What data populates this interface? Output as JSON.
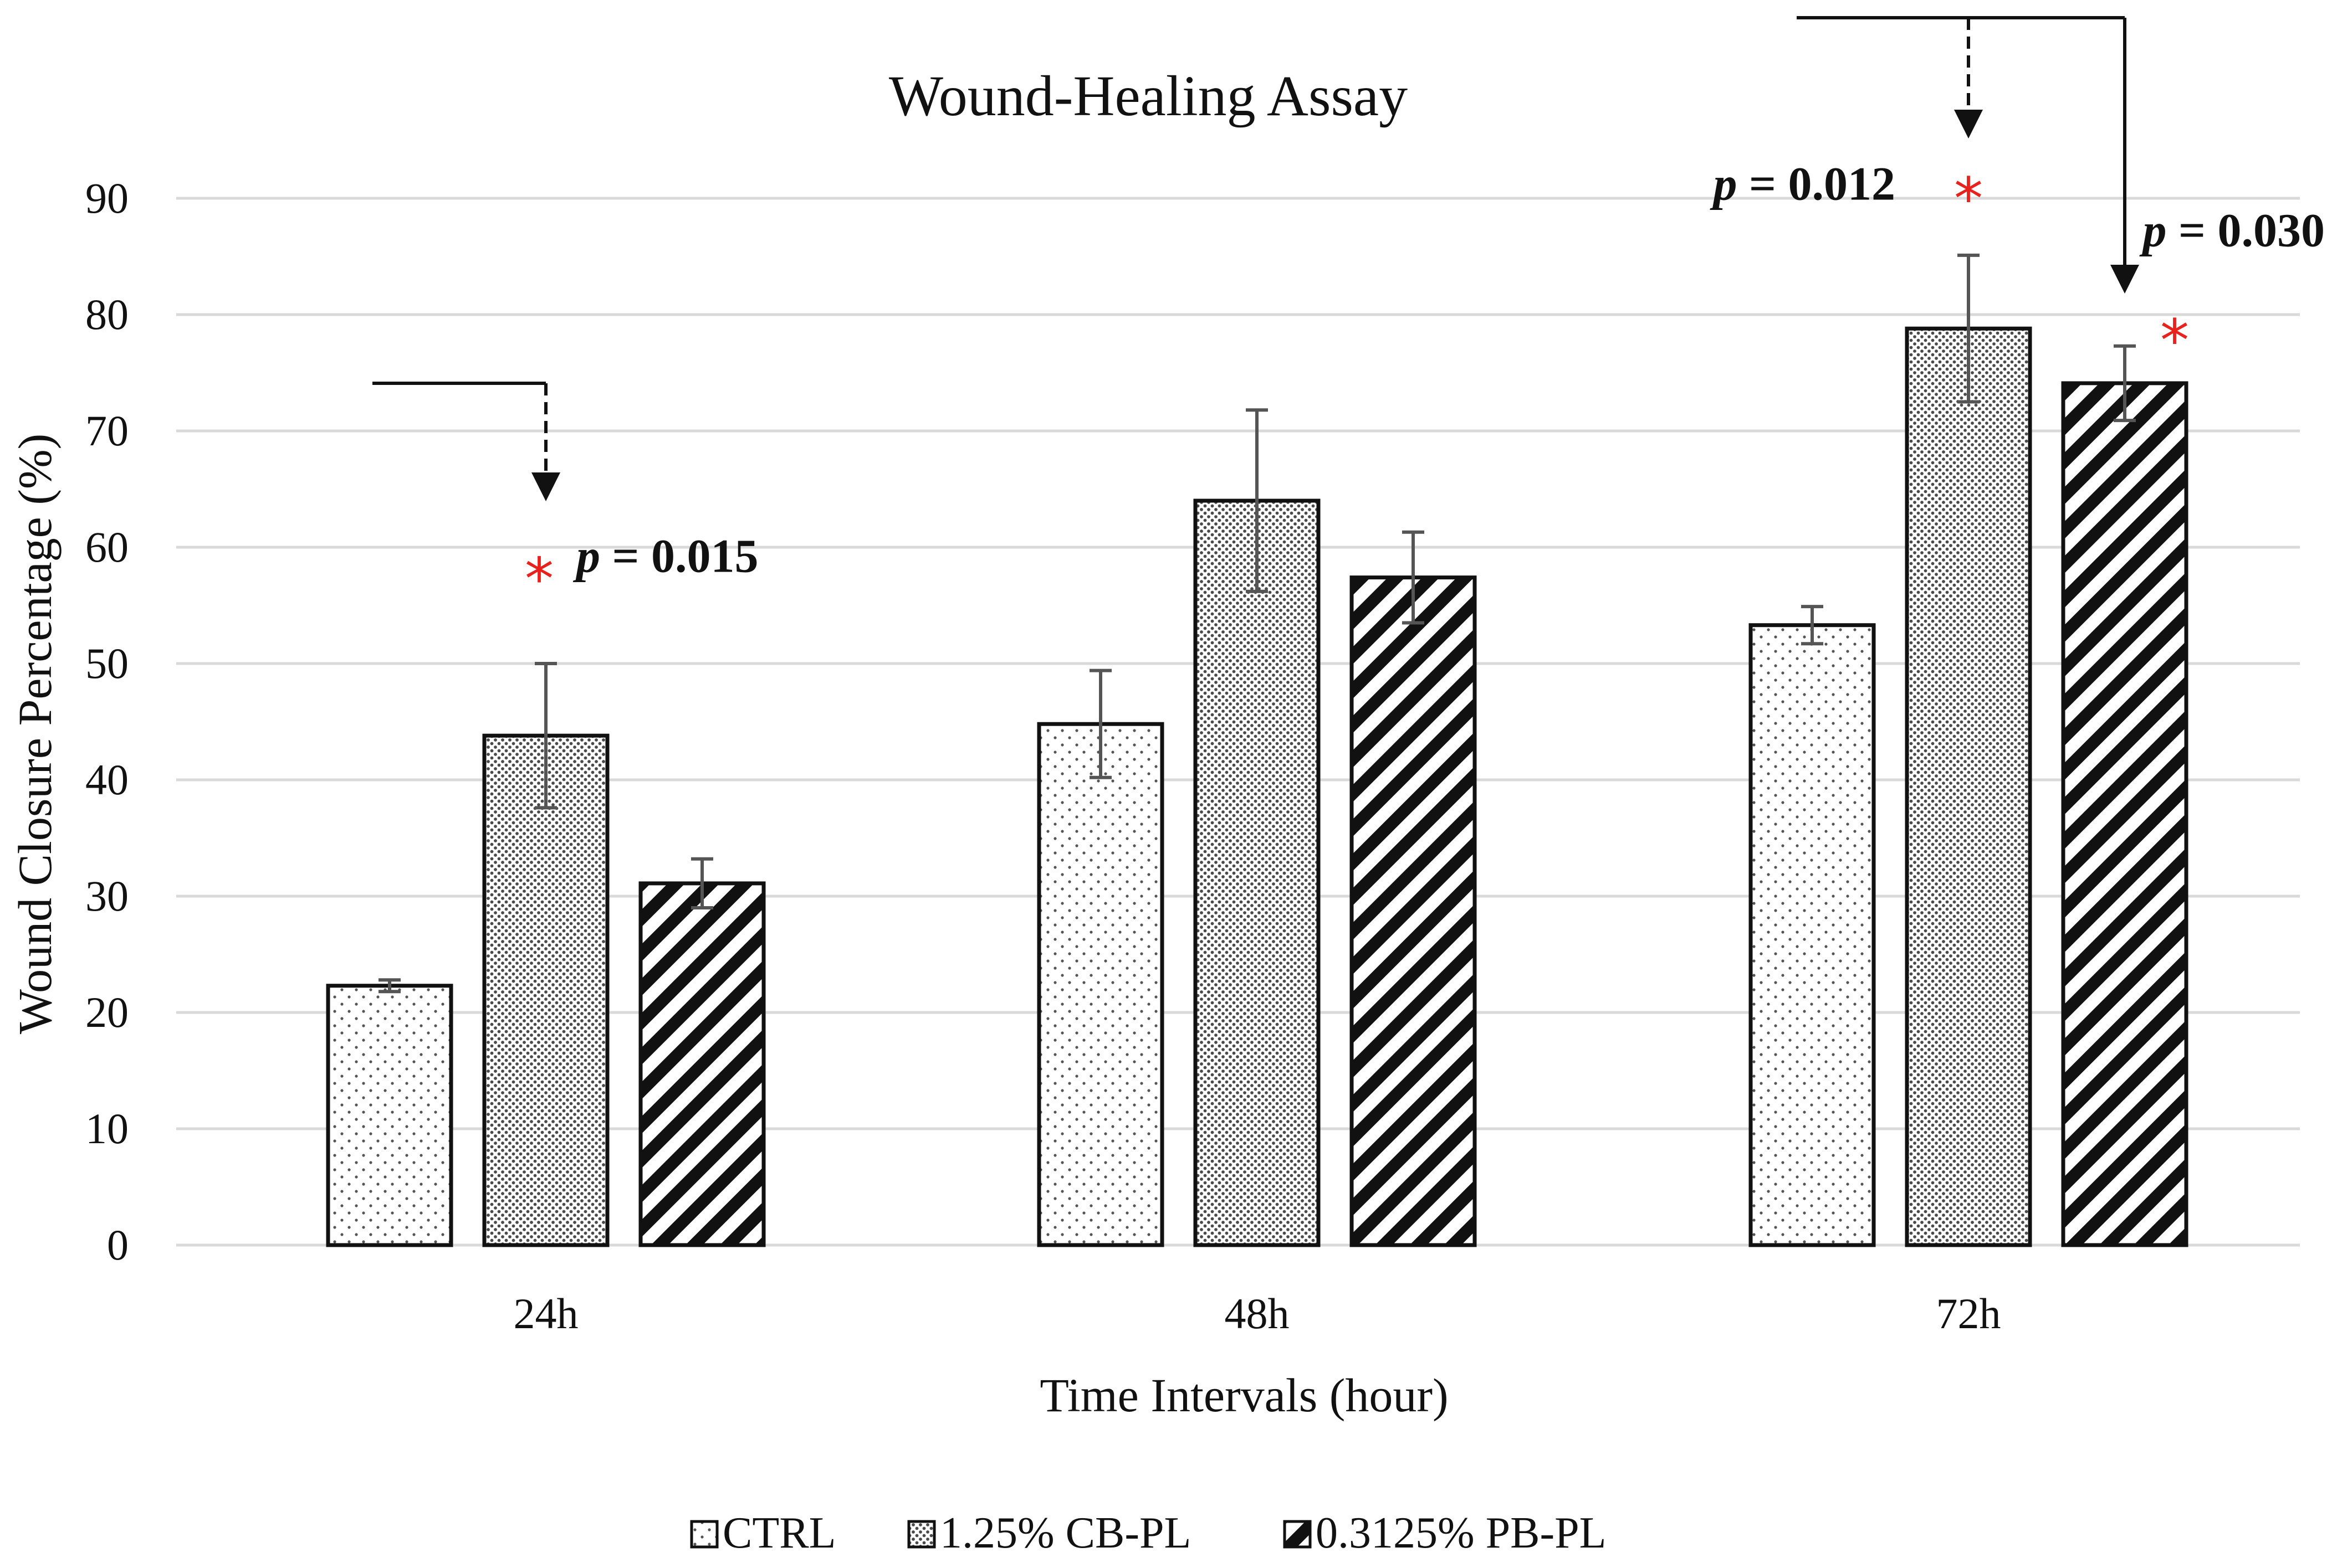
{
  "chart_data": {
    "type": "bar",
    "title": "Wound-Healing Assay",
    "xlabel": "Time Intervals (hour)",
    "ylabel": "Wound Closure Percentage (%)",
    "ylim": [
      0,
      90
    ],
    "yticks": [
      0,
      10,
      20,
      30,
      40,
      50,
      60,
      70,
      80,
      90
    ],
    "grid": true,
    "legend_position": "bottom",
    "categories": [
      "24h",
      "48h",
      "72h"
    ],
    "series": [
      {
        "name": "CTRL",
        "pattern": "dots",
        "values": [
          22.3,
          44.8,
          53.3
        ],
        "errors": [
          0.5,
          4.6,
          1.6
        ]
      },
      {
        "name": "1.25% CB-PL",
        "pattern": "dense-dots",
        "values": [
          43.8,
          64.0,
          78.8
        ],
        "errors": [
          6.2,
          7.8,
          6.3
        ]
      },
      {
        "name": "0.3125% PB-PL",
        "pattern": "diagonal",
        "values": [
          31.1,
          57.4,
          74.1
        ],
        "errors": [
          2.1,
          3.9,
          3.2
        ]
      }
    ],
    "annotations": [
      {
        "category": "24h",
        "series": "1.25% CB-PL",
        "text": "p = 0.015",
        "marker": "*",
        "arrow": "dashed"
      },
      {
        "category": "72h",
        "series": "1.25% CB-PL",
        "text": "p = 0.012",
        "marker": "*",
        "arrow": "dashed"
      },
      {
        "category": "72h",
        "series": "0.3125% PB-PL",
        "text": "p = 0.030",
        "marker": "*",
        "arrow": "solid"
      }
    ]
  },
  "colors": {
    "bar_fill": "#ffffff",
    "dot": "#555555",
    "dense_dot": "#4a4a4a",
    "hatch": "#111111",
    "grid": "#d9d9d9",
    "star": "#e8211c"
  }
}
